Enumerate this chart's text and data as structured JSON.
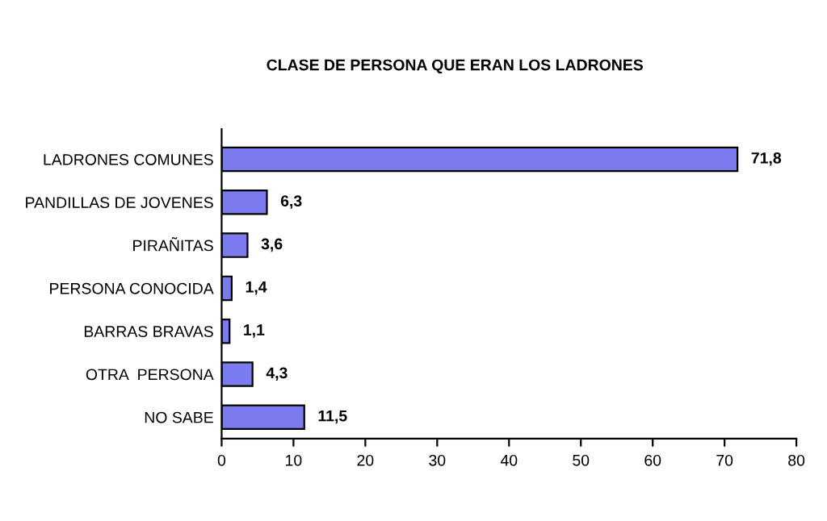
{
  "chart_data": {
    "type": "bar",
    "orientation": "horizontal",
    "title": "CLASE DE PERSONA QUE ERAN LOS LADRONES",
    "categories": [
      "LADRONES COMUNES",
      "PANDILLAS DE JOVENES",
      "PIRAÑITAS",
      "PERSONA CONOCIDA",
      "BARRAS BRAVAS",
      "OTRA  PERSONA",
      "NO SABE"
    ],
    "values": [
      71.8,
      6.3,
      3.6,
      1.4,
      1.1,
      4.3,
      11.5
    ],
    "value_labels": [
      "71,8",
      "6,3",
      "3,6",
      "1,4",
      "1,1",
      "4,3",
      "11,5"
    ],
    "color": "#7b7bef",
    "xlim": [
      0,
      80
    ],
    "xticks": [
      0,
      10,
      20,
      30,
      40,
      50,
      60,
      70,
      80
    ],
    "grid": false,
    "legend": false
  }
}
